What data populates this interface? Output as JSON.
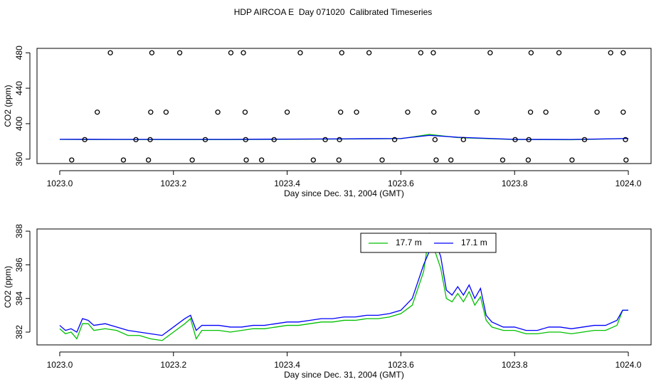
{
  "title": "HDP AIRCOA E  Day 071020  Calibrated Timeseries",
  "chart_data": [
    {
      "type": "scatter",
      "xlabel": "Day since Dec. 31, 2004 (GMT)",
      "ylabel": "CO2 (ppm)",
      "xlim": [
        1022.96,
        1024.04
      ],
      "ylim": [
        355,
        485
      ],
      "xticks": [
        {
          "value": 1023.0,
          "label": "1023.0"
        },
        {
          "value": 1023.2,
          "label": "1023.2"
        },
        {
          "value": 1023.4,
          "label": "1023.4"
        },
        {
          "value": 1023.6,
          "label": "1023.6"
        },
        {
          "value": 1023.8,
          "label": "1023.8"
        },
        {
          "value": 1024.0,
          "label": "1024.0"
        }
      ],
      "yticks": [
        360,
        400,
        440,
        480
      ],
      "series": [
        {
          "style": "line",
          "color": "#00c000",
          "x": [
            1023.0,
            1023.1,
            1023.2,
            1023.3,
            1023.4,
            1023.5,
            1023.6,
            1023.65,
            1023.7,
            1023.8,
            1023.9,
            1024.0
          ],
          "values": [
            382.2,
            382.1,
            382.0,
            382.0,
            382.4,
            382.7,
            383.1,
            387.9,
            384.3,
            382.1,
            381.9,
            383.3
          ]
        },
        {
          "style": "line",
          "color": "#0000ff",
          "x": [
            1023.0,
            1023.1,
            1023.2,
            1023.3,
            1023.4,
            1023.5,
            1023.6,
            1023.65,
            1023.7,
            1023.8,
            1023.9,
            1024.0
          ],
          "values": [
            382.4,
            382.3,
            382.3,
            382.3,
            382.6,
            382.9,
            383.3,
            386.8,
            384.7,
            382.3,
            382.2,
            383.3
          ]
        },
        {
          "style": "points",
          "color": "#000000",
          "x": [
            1023.089,
            1023.162,
            1023.211,
            1023.301,
            1023.323,
            1023.423,
            1023.496,
            1023.544,
            1023.635,
            1023.657,
            1023.757,
            1023.829,
            1023.878,
            1023.969,
            1023.991,
            1023.066,
            1023.16,
            1023.187,
            1023.278,
            1023.326,
            1023.4,
            1023.494,
            1023.522,
            1023.612,
            1023.658,
            1023.734,
            1023.828,
            1023.855,
            1023.945,
            1023.991,
            1023.044,
            1023.134,
            1023.159,
            1023.256,
            1023.327,
            1023.377,
            1023.467,
            1023.492,
            1023.589,
            1023.66,
            1023.71,
            1023.801,
            1023.825,
            1023.923,
            1023.995,
            1023.021,
            1023.112,
            1023.156,
            1023.233,
            1023.328,
            1023.355,
            1023.446,
            1023.491,
            1023.567,
            1023.662,
            1023.688,
            1023.779,
            1023.824,
            1023.901,
            1023.996
          ],
          "values": [
            480,
            480,
            480,
            480,
            480,
            480,
            480,
            480,
            480,
            480,
            480,
            480,
            480,
            480,
            480,
            413,
            413,
            413,
            413,
            413,
            413,
            413,
            413,
            413,
            413,
            413,
            413,
            413,
            413,
            413,
            382,
            382,
            382,
            382,
            382,
            382,
            382,
            382,
            382,
            382,
            382,
            382,
            382,
            382,
            382,
            359,
            359,
            359,
            359,
            359,
            359,
            359,
            359,
            359,
            359,
            359,
            359,
            359,
            359,
            359
          ]
        }
      ]
    },
    {
      "type": "line",
      "xlabel": "Day since Dec. 31, 2004 (GMT)",
      "ylabel": "CO2 (ppm)",
      "xlim": [
        1022.96,
        1024.04
      ],
      "ylim": [
        381.24,
        388.13
      ],
      "xticks": [
        {
          "value": 1023.0,
          "label": "1023.0"
        },
        {
          "value": 1023.2,
          "label": "1023.2"
        },
        {
          "value": 1023.4,
          "label": "1023.4"
        },
        {
          "value": 1023.6,
          "label": "1023.6"
        },
        {
          "value": 1023.8,
          "label": "1023.8"
        },
        {
          "value": 1024.0,
          "label": "1024.0"
        }
      ],
      "yticks": [
        382,
        384,
        386,
        388
      ],
      "legend": "top",
      "series": [
        {
          "name": "17.7 m",
          "style": "line",
          "color": "#00c000",
          "x": [
            1023.0,
            1023.01,
            1023.02,
            1023.03,
            1023.04,
            1023.05,
            1023.06,
            1023.08,
            1023.1,
            1023.12,
            1023.14,
            1023.16,
            1023.18,
            1023.2,
            1023.22,
            1023.23,
            1023.24,
            1023.25,
            1023.28,
            1023.3,
            1023.32,
            1023.34,
            1023.36,
            1023.38,
            1023.4,
            1023.42,
            1023.44,
            1023.46,
            1023.48,
            1023.5,
            1023.52,
            1023.54,
            1023.56,
            1023.58,
            1023.6,
            1023.62,
            1023.63,
            1023.64,
            1023.65,
            1023.66,
            1023.67,
            1023.68,
            1023.69,
            1023.7,
            1023.71,
            1023.72,
            1023.73,
            1023.74,
            1023.75,
            1023.76,
            1023.78,
            1023.8,
            1023.82,
            1023.84,
            1023.86,
            1023.88,
            1023.9,
            1023.92,
            1023.94,
            1023.96,
            1023.98,
            1023.99,
            1024.0
          ],
          "values": [
            382.2,
            381.9,
            382.0,
            381.6,
            382.5,
            382.5,
            382.1,
            382.2,
            382.1,
            381.8,
            381.8,
            381.6,
            381.5,
            382.0,
            382.5,
            382.8,
            381.6,
            382.1,
            382.1,
            382.0,
            382.1,
            382.2,
            382.2,
            382.3,
            382.4,
            382.4,
            382.5,
            382.6,
            382.6,
            382.7,
            382.7,
            382.8,
            382.8,
            382.9,
            383.1,
            383.6,
            384.6,
            385.6,
            387.9,
            386.8,
            385.8,
            384.0,
            383.8,
            384.3,
            383.8,
            384.4,
            383.6,
            384.1,
            382.7,
            382.3,
            382.1,
            382.1,
            381.9,
            381.9,
            382.0,
            382.0,
            381.9,
            382.0,
            382.1,
            382.1,
            382.4,
            383.3,
            383.3
          ]
        },
        {
          "name": "17.1 m",
          "style": "line",
          "color": "#0000ff",
          "x": [
            1023.0,
            1023.01,
            1023.02,
            1023.03,
            1023.04,
            1023.05,
            1023.06,
            1023.08,
            1023.1,
            1023.12,
            1023.14,
            1023.16,
            1023.18,
            1023.2,
            1023.22,
            1023.23,
            1023.24,
            1023.25,
            1023.28,
            1023.3,
            1023.32,
            1023.34,
            1023.36,
            1023.38,
            1023.4,
            1023.42,
            1023.44,
            1023.46,
            1023.48,
            1023.5,
            1023.52,
            1023.54,
            1023.56,
            1023.58,
            1023.6,
            1023.62,
            1023.63,
            1023.64,
            1023.65,
            1023.66,
            1023.67,
            1023.68,
            1023.69,
            1023.7,
            1023.71,
            1023.72,
            1023.73,
            1023.74,
            1023.75,
            1023.76,
            1023.78,
            1023.8,
            1023.82,
            1023.84,
            1023.86,
            1023.88,
            1023.9,
            1023.92,
            1023.94,
            1023.96,
            1023.98,
            1023.99,
            1024.0
          ],
          "values": [
            382.4,
            382.1,
            382.2,
            382.0,
            382.8,
            382.7,
            382.4,
            382.5,
            382.3,
            382.1,
            382.0,
            381.9,
            381.8,
            382.3,
            382.8,
            383.0,
            382.1,
            382.4,
            382.4,
            382.3,
            382.3,
            382.4,
            382.4,
            382.5,
            382.6,
            382.6,
            382.7,
            382.8,
            382.8,
            382.9,
            382.9,
            383.0,
            383.0,
            383.1,
            383.3,
            384.0,
            385.0,
            386.0,
            386.8,
            387.4,
            386.5,
            384.5,
            384.2,
            384.7,
            384.2,
            384.8,
            384.0,
            384.6,
            383.0,
            382.6,
            382.3,
            382.3,
            382.1,
            382.1,
            382.3,
            382.3,
            382.2,
            382.3,
            382.4,
            382.4,
            382.7,
            383.3,
            383.3
          ]
        }
      ]
    }
  ]
}
